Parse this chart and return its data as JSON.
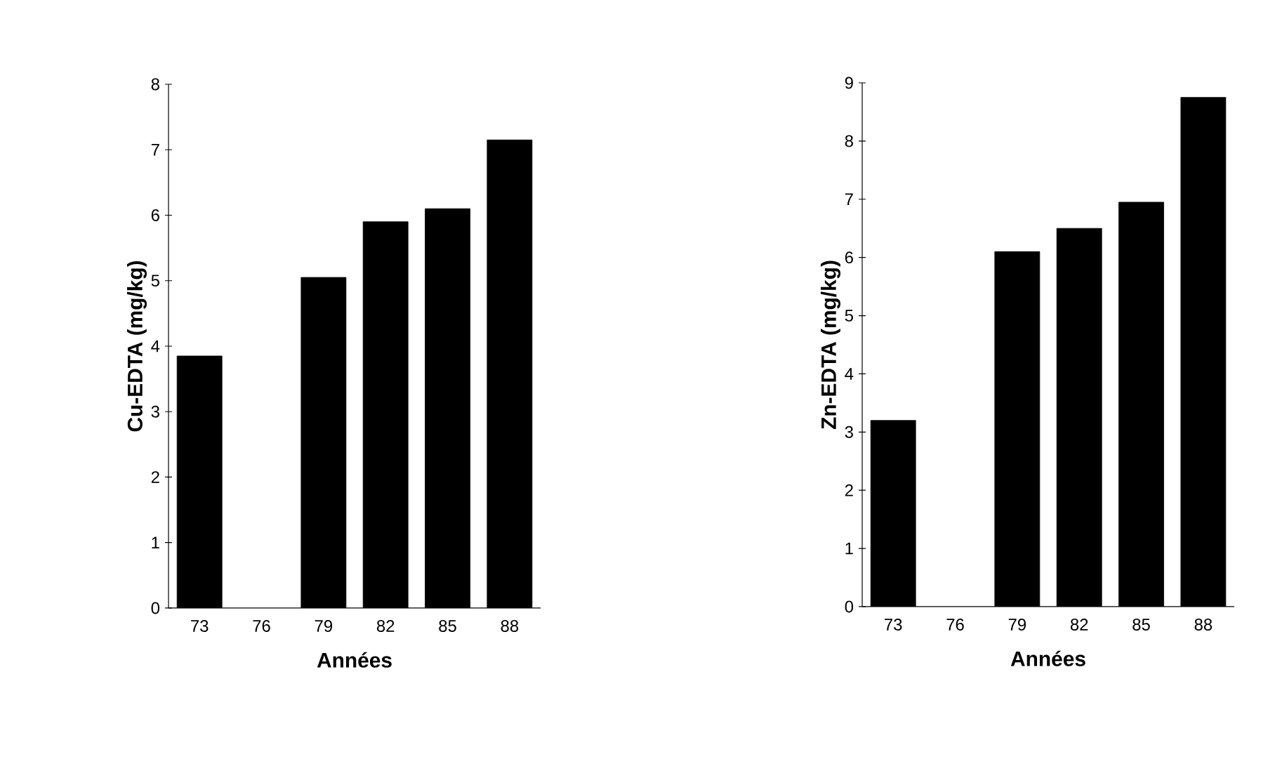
{
  "chart_data": [
    {
      "type": "bar",
      "categories": [
        "73",
        "76",
        "79",
        "82",
        "85",
        "88"
      ],
      "values": [
        3.85,
        null,
        5.05,
        5.9,
        6.1,
        7.15
      ],
      "color": "#000000",
      "xlabel": "Années",
      "ylabel": "Cu-EDTA (mg/kg)",
      "ylim": [
        0,
        8
      ],
      "yticks": [
        0,
        1,
        2,
        3,
        4,
        5,
        6,
        7,
        8
      ]
    },
    {
      "type": "bar",
      "categories": [
        "73",
        "76",
        "79",
        "82",
        "85",
        "88"
      ],
      "values": [
        3.2,
        null,
        6.1,
        6.5,
        6.95,
        8.75
      ],
      "color": "#000000",
      "xlabel": "Années",
      "ylabel": "Zn-EDTA (mg/kg)",
      "ylim": [
        0,
        9
      ],
      "yticks": [
        0,
        1,
        2,
        3,
        4,
        5,
        6,
        7,
        8,
        9
      ]
    }
  ]
}
